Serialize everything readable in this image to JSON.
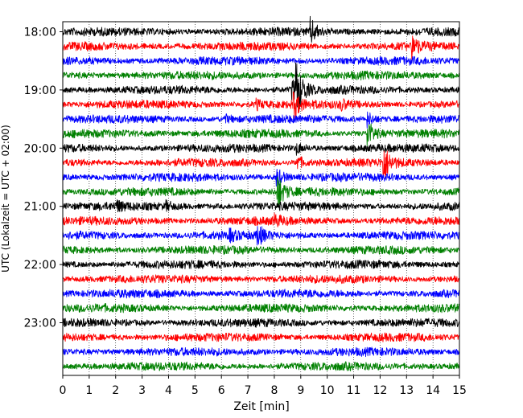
{
  "chart_data": {
    "type": "line",
    "title": "",
    "xlabel": "Zeit  [min]",
    "ylabel": "UTC (Lokalzeit = UTC + 02:00)",
    "xlim": [
      0,
      15
    ],
    "x_ticks": [
      "0",
      "1",
      "2",
      "3",
      "4",
      "5",
      "6",
      "7",
      "8",
      "9",
      "10",
      "11",
      "12",
      "13",
      "14",
      "15"
    ],
    "y_tick_labels": [
      "18:00",
      "19:00",
      "20:00",
      "21:00",
      "22:00",
      "23:00"
    ],
    "grid": "vertical-dotted",
    "trace_colors": [
      "#000000",
      "#ff0000",
      "#0000ff",
      "#008000"
    ],
    "traces": [
      {
        "start": "18:00",
        "events": [
          [
            9.35,
            16
          ]
        ]
      },
      {
        "start": "18:15",
        "events": [
          [
            13.2,
            14
          ]
        ]
      },
      {
        "start": "18:30",
        "events": []
      },
      {
        "start": "18:45",
        "events": []
      },
      {
        "start": "19:00",
        "events": [
          [
            8.8,
            40
          ],
          [
            8.65,
            14
          ]
        ]
      },
      {
        "start": "19:15",
        "events": [
          [
            8.7,
            18
          ],
          [
            7.3,
            6
          ],
          [
            10.5,
            6
          ]
        ]
      },
      {
        "start": "19:30",
        "events": [
          [
            11.5,
            10
          ],
          [
            6.1,
            5
          ]
        ]
      },
      {
        "start": "19:45",
        "events": [
          [
            11.5,
            20
          ]
        ]
      },
      {
        "start": "20:00",
        "events": [
          [
            8.8,
            8
          ]
        ]
      },
      {
        "start": "20:15",
        "events": [
          [
            12.1,
            26
          ],
          [
            8.8,
            12
          ]
        ]
      },
      {
        "start": "20:30",
        "events": [
          [
            8.05,
            14
          ]
        ]
      },
      {
        "start": "20:45",
        "events": [
          [
            8.1,
            24
          ]
        ]
      },
      {
        "start": "21:00",
        "events": [
          [
            2.0,
            6
          ],
          [
            3.9,
            5
          ]
        ]
      },
      {
        "start": "21:15",
        "events": [
          [
            8.0,
            6
          ]
        ]
      },
      {
        "start": "21:30",
        "events": [
          [
            7.35,
            14
          ],
          [
            6.3,
            6
          ]
        ]
      },
      {
        "start": "21:45",
        "events": []
      },
      {
        "start": "22:00",
        "events": []
      },
      {
        "start": "22:15",
        "events": []
      },
      {
        "start": "22:30",
        "events": []
      },
      {
        "start": "22:45",
        "events": []
      },
      {
        "start": "23:00",
        "events": []
      },
      {
        "start": "23:15",
        "events": []
      },
      {
        "start": "23:30",
        "events": []
      },
      {
        "start": "23:45",
        "events": []
      }
    ]
  }
}
